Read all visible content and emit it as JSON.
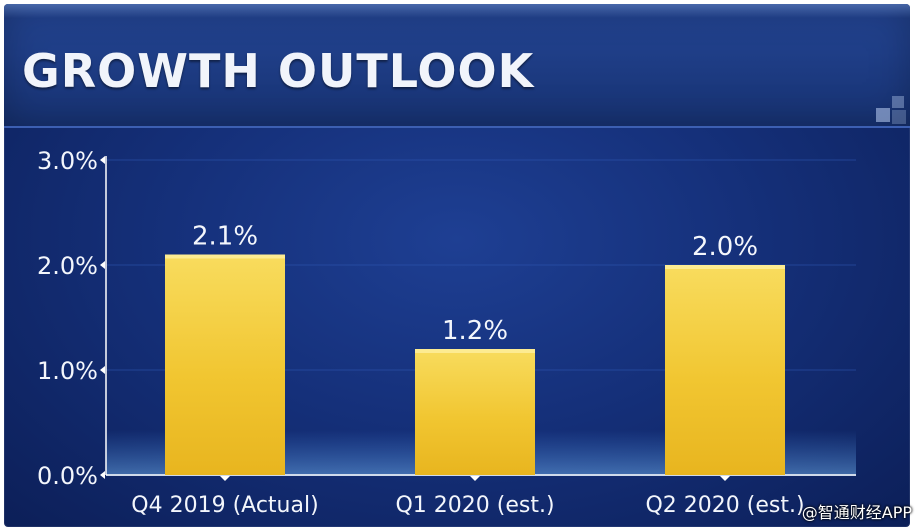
{
  "header": {
    "title": "GROWTH OUTLOOK"
  },
  "watermark": "@智通财经APP",
  "colors": {
    "bar_top": "#f8dc5e",
    "bar_bottom": "#e8b51f",
    "axis": "#ffffff",
    "grid": "#2f58b4",
    "label": "#f3f6fc"
  },
  "chart_data": {
    "type": "bar",
    "title": "GROWTH OUTLOOK",
    "categories": [
      "Q4 2019 (Actual)",
      "Q1 2020 (est.)",
      "Q2 2020 (est.)"
    ],
    "values": [
      2.1,
      1.2,
      2.0
    ],
    "data_labels": [
      "2.1%",
      "1.2%",
      "2.0%"
    ],
    "y_ticks": [
      0,
      1,
      2,
      3
    ],
    "y_tick_labels": [
      "0.0%",
      "1.0%",
      "2.0%",
      "3.0%"
    ],
    "ylim": [
      0,
      3
    ],
    "xlabel": "",
    "ylabel": "",
    "grid": true
  }
}
